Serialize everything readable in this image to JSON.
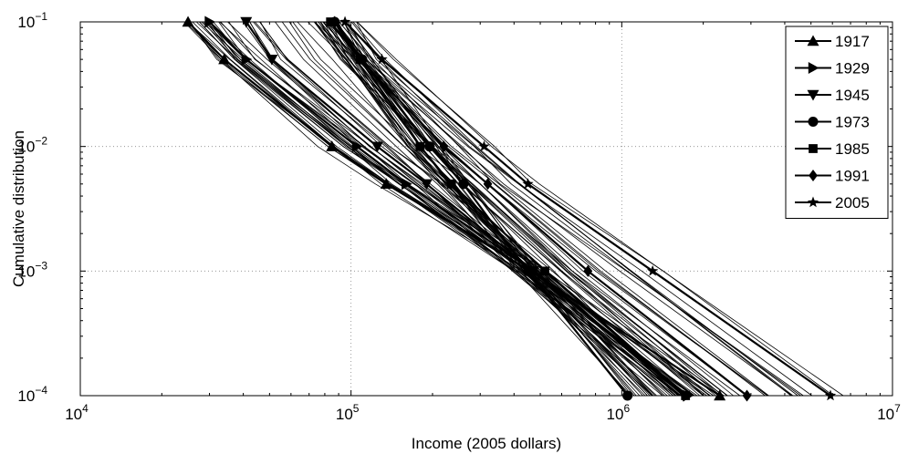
{
  "chart_data": {
    "type": "line",
    "title": "",
    "xlabel": "Income (2005 dollars)",
    "ylabel": "Cumulative distribution",
    "x_scale": "log",
    "y_scale": "log",
    "xlim": [
      10000,
      10000000
    ],
    "ylim": [
      0.0001,
      0.1
    ],
    "grid": true,
    "legend_position": "top-right",
    "x_ticks": [
      {
        "base": "10",
        "exp": "4",
        "value": 10000
      },
      {
        "base": "10",
        "exp": "5",
        "value": 100000
      },
      {
        "base": "10",
        "exp": "6",
        "value": 1000000
      },
      {
        "base": "10",
        "exp": "7",
        "value": 10000000
      }
    ],
    "y_ticks": [
      {
        "base": "10",
        "exp": "−4",
        "value": 0.0001
      },
      {
        "base": "10",
        "exp": "−3",
        "value": 0.001
      },
      {
        "base": "10",
        "exp": "−2",
        "value": 0.01
      },
      {
        "base": "10",
        "exp": "−1",
        "value": 0.1
      }
    ],
    "probabilities": [
      0.1,
      0.05,
      0.01,
      0.005,
      0.001,
      0.0001
    ],
    "series": [
      {
        "name": "1917",
        "marker": "triangle-up",
        "x": [
          25000,
          34000,
          85000,
          135000,
          460000,
          2300000
        ]
      },
      {
        "name": "1929",
        "marker": "triangle-right",
        "x": [
          30000,
          41000,
          105000,
          160000,
          470000,
          1750000
        ]
      },
      {
        "name": "1945",
        "marker": "triangle-down",
        "x": [
          41000,
          51000,
          125000,
          190000,
          470000,
          1700000
        ]
      },
      {
        "name": "1973",
        "marker": "circle",
        "x": [
          87000,
          110000,
          195000,
          260000,
          450000,
          1050000
        ]
      },
      {
        "name": "1985",
        "marker": "square",
        "x": [
          84000,
          108000,
          180000,
          235000,
          520000,
          1720000
        ]
      },
      {
        "name": "1991",
        "marker": "diamond",
        "x": [
          87000,
          108000,
          220000,
          320000,
          750000,
          2900000
        ]
      },
      {
        "name": "2005",
        "marker": "star",
        "x": [
          95000,
          130000,
          310000,
          450000,
          1300000,
          5900000
        ]
      }
    ],
    "background_years_count": 82
  }
}
